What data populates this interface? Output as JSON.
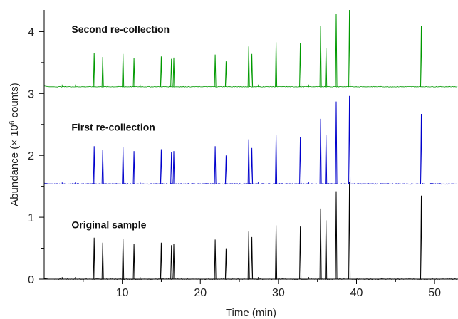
{
  "chart_data": {
    "type": "line",
    "xlabel": "Time (min)",
    "ylabel_prefix": "Abundance (× 10",
    "ylabel_exponent": "6",
    "ylabel_suffix": " counts)",
    "xlim": [
      0,
      53
    ],
    "ylim": [
      0,
      4.35
    ],
    "xticks": [
      10,
      20,
      30,
      40,
      50
    ],
    "yticks": [
      0,
      1,
      2,
      3,
      4
    ],
    "grid": false,
    "series": [
      {
        "name": "Original sample",
        "color": "#000000",
        "baseline": 0.0,
        "noise": 0.012,
        "peaks": [
          {
            "x": 6.4,
            "h": 0.67
          },
          {
            "x": 7.5,
            "h": 0.59
          },
          {
            "x": 10.1,
            "h": 0.65
          },
          {
            "x": 11.5,
            "h": 0.57
          },
          {
            "x": 15.0,
            "h": 0.59
          },
          {
            "x": 16.3,
            "h": 0.55
          },
          {
            "x": 16.6,
            "h": 0.57
          },
          {
            "x": 21.9,
            "h": 0.64
          },
          {
            "x": 23.3,
            "h": 0.5
          },
          {
            "x": 26.2,
            "h": 0.77
          },
          {
            "x": 26.6,
            "h": 0.68
          },
          {
            "x": 29.7,
            "h": 0.87
          },
          {
            "x": 32.8,
            "h": 0.85
          },
          {
            "x": 35.4,
            "h": 1.14
          },
          {
            "x": 36.1,
            "h": 0.95
          },
          {
            "x": 37.4,
            "h": 1.42
          },
          {
            "x": 39.1,
            "h": 1.57
          },
          {
            "x": 48.3,
            "h": 1.35
          }
        ]
      },
      {
        "name": "First re-collection",
        "color": "#0000cc",
        "baseline": 1.54,
        "noise": 0.012,
        "peaks": [
          {
            "x": 6.4,
            "h": 0.61
          },
          {
            "x": 7.5,
            "h": 0.55
          },
          {
            "x": 10.1,
            "h": 0.59
          },
          {
            "x": 11.5,
            "h": 0.53
          },
          {
            "x": 15.0,
            "h": 0.56
          },
          {
            "x": 16.3,
            "h": 0.51
          },
          {
            "x": 16.6,
            "h": 0.53
          },
          {
            "x": 21.9,
            "h": 0.61
          },
          {
            "x": 23.3,
            "h": 0.46
          },
          {
            "x": 26.2,
            "h": 0.72
          },
          {
            "x": 26.6,
            "h": 0.58
          },
          {
            "x": 29.7,
            "h": 0.79
          },
          {
            "x": 32.8,
            "h": 0.76
          },
          {
            "x": 35.4,
            "h": 1.05
          },
          {
            "x": 36.1,
            "h": 0.79
          },
          {
            "x": 37.4,
            "h": 1.33
          },
          {
            "x": 39.1,
            "h": 1.42
          },
          {
            "x": 48.3,
            "h": 1.13
          }
        ]
      },
      {
        "name": "Second re-collection",
        "color": "#009900",
        "baseline": 3.11,
        "noise": 0.01,
        "peaks": [
          {
            "x": 6.4,
            "h": 0.55
          },
          {
            "x": 7.5,
            "h": 0.48
          },
          {
            "x": 10.1,
            "h": 0.53
          },
          {
            "x": 11.5,
            "h": 0.46
          },
          {
            "x": 15.0,
            "h": 0.49
          },
          {
            "x": 16.3,
            "h": 0.45
          },
          {
            "x": 16.6,
            "h": 0.47
          },
          {
            "x": 21.9,
            "h": 0.52
          },
          {
            "x": 23.3,
            "h": 0.41
          },
          {
            "x": 26.2,
            "h": 0.65
          },
          {
            "x": 26.6,
            "h": 0.53
          },
          {
            "x": 29.7,
            "h": 0.72
          },
          {
            "x": 32.8,
            "h": 0.7
          },
          {
            "x": 35.4,
            "h": 0.98
          },
          {
            "x": 36.1,
            "h": 0.62
          },
          {
            "x": 37.4,
            "h": 1.18
          },
          {
            "x": 39.1,
            "h": 1.24
          },
          {
            "x": 48.3,
            "h": 0.98
          }
        ]
      }
    ],
    "annotations": [
      {
        "text": "Second re-collection",
        "x": 3.5,
        "y": 3.98
      },
      {
        "text": "First re-collection",
        "x": 3.5,
        "y": 2.4
      },
      {
        "text": "Original sample",
        "x": 3.5,
        "y": 0.82
      }
    ]
  }
}
